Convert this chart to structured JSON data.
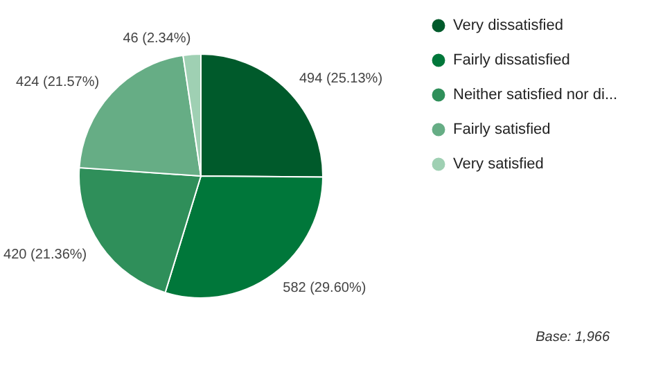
{
  "chart_data": {
    "type": "pie",
    "categories": [
      "Very dissatisfied",
      "Fairly dissatisfied",
      "Neither satisfied nor di...",
      "Fairly satisfied",
      "Very satisfied"
    ],
    "values": [
      494,
      582,
      420,
      424,
      46
    ],
    "colors": [
      "#005a2b",
      "#00773a",
      "#2f8f5a",
      "#66ad85",
      "#9fd0b3"
    ],
    "value_labels": [
      "494 (25.13%)",
      "582 (29.60%)",
      "420 (21.36%)",
      "424 (21.57%)",
      "46 (2.34%)"
    ],
    "legend": "right",
    "annotations": [
      "Base: 1,966"
    ]
  }
}
